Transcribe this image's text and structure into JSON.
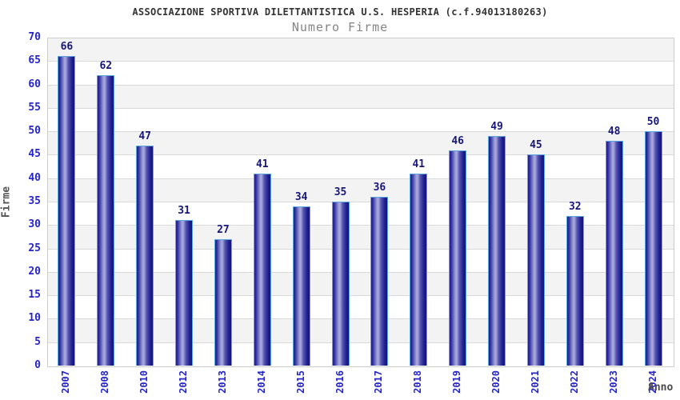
{
  "chart_data": {
    "type": "bar",
    "title": "ASSOCIAZIONE SPORTIVA DILETTANTISTICA U.S. HESPERIA (c.f.94013180263)",
    "subtitle": "Numero Firme",
    "xlabel": "Anno",
    "ylabel": "Firme",
    "categories": [
      "2007",
      "2008",
      "2010",
      "2012",
      "2013",
      "2014",
      "2015",
      "2016",
      "2017",
      "2018",
      "2019",
      "2020",
      "2021",
      "2022",
      "2023",
      "2024"
    ],
    "values": [
      66,
      62,
      47,
      31,
      27,
      41,
      34,
      35,
      36,
      41,
      46,
      49,
      45,
      32,
      48,
      50
    ],
    "ylim": [
      0,
      70
    ],
    "ytick_step": 5,
    "grid": true,
    "legend": false,
    "band_fill": true,
    "colors": {
      "bar_edge": "#1e1e8c",
      "bar_mid": "#a6a6dc",
      "bar_dark_end": "#15157b",
      "bar_border": "#5ca6e2",
      "value_label": "#17177a",
      "tick_label": "#2525c8",
      "axis_title": "#555555",
      "title": "#333333",
      "subtitle": "#858585",
      "band_gray": "#f3f3f3",
      "band_white": "#ffffff",
      "gridline": "#d9d9d9",
      "plot_border": "#cccccc"
    }
  }
}
